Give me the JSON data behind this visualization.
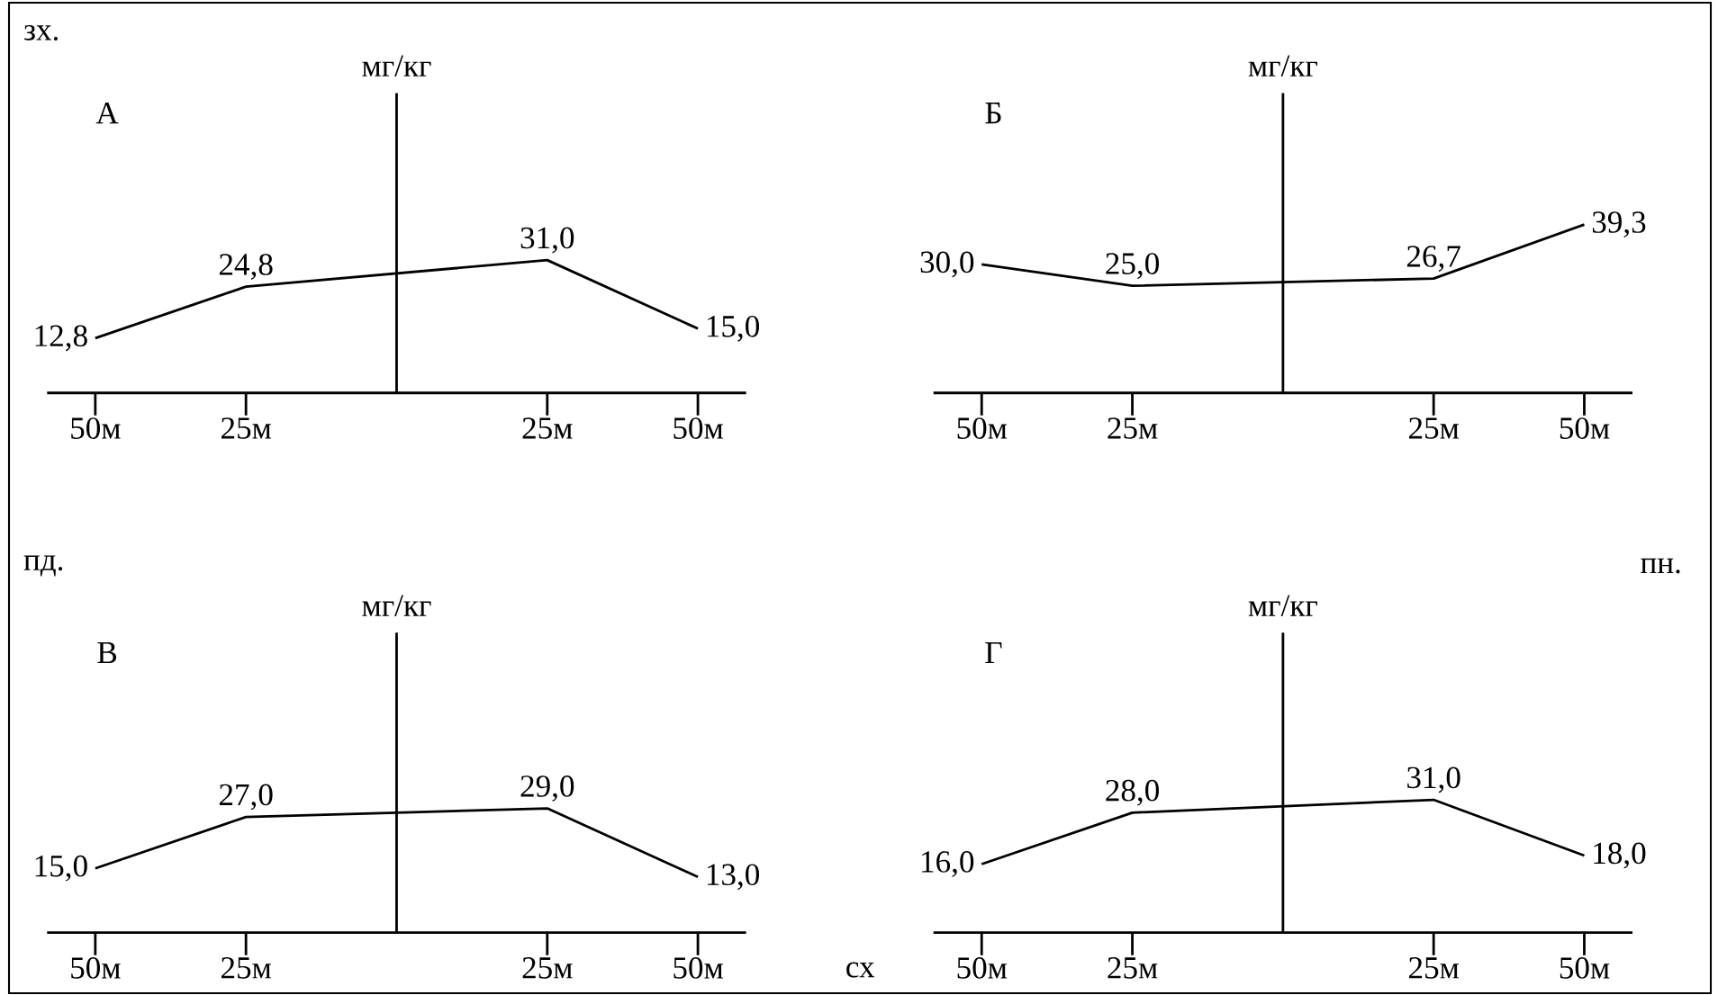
{
  "chart_data": [
    {
      "type": "line",
      "title": "А",
      "ylabel": "мг/кг",
      "x": [
        -50,
        -25,
        25,
        50
      ],
      "values": [
        12.8,
        24.8,
        31.0,
        15.0
      ],
      "value_labels": [
        "12,8",
        "24,8",
        "31,0",
        "15,0"
      ],
      "color": "#000000",
      "xlim": [
        -58,
        58
      ],
      "ylim": [
        0,
        70
      ],
      "xticks": [
        {
          "value": -50,
          "label": "50м"
        },
        {
          "value": -25,
          "label": "25м"
        },
        {
          "value": 25,
          "label": "25м"
        },
        {
          "value": 50,
          "label": "50м"
        }
      ],
      "tick_labels": "x",
      "annotations": [
        "зх.",
        "пд.",
        "пн.",
        "сх"
      ]
    },
    {
      "type": "line",
      "title": "Б",
      "ylabel": "мг/кг",
      "x": [
        -50,
        -25,
        25,
        50
      ],
      "values": [
        30.0,
        25.0,
        26.7,
        39.3
      ],
      "value_labels": [
        "30,0",
        "25,0",
        "26,7",
        "39,3"
      ],
      "color": "#000000",
      "xlim": [
        -58,
        58
      ],
      "ylim": [
        0,
        70
      ],
      "xticks": [
        {
          "value": -50,
          "label": "50м"
        },
        {
          "value": -25,
          "label": "25м"
        },
        {
          "value": 25,
          "label": "25м"
        },
        {
          "value": 50,
          "label": "50м"
        }
      ],
      "tick_labels": "x"
    },
    {
      "type": "line",
      "title": "В",
      "ylabel": "мг/кг",
      "x": [
        -50,
        -25,
        25,
        50
      ],
      "values": [
        15.0,
        27.0,
        29.0,
        13.0
      ],
      "value_labels": [
        "15,0",
        "27,0",
        "29,0",
        "13,0"
      ],
      "color": "#000000",
      "xlim": [
        -58,
        58
      ],
      "ylim": [
        0,
        70
      ],
      "xticks": [
        {
          "value": -50,
          "label": "50м"
        },
        {
          "value": -25,
          "label": "25м"
        },
        {
          "value": 25,
          "label": "25м"
        },
        {
          "value": 50,
          "label": "50м"
        }
      ],
      "tick_labels": "x"
    },
    {
      "type": "line",
      "title": "Г",
      "ylabel": "мг/кг",
      "x": [
        -50,
        -25,
        25,
        50
      ],
      "values": [
        16.0,
        28.0,
        31.0,
        18.0
      ],
      "value_labels": [
        "16,0",
        "28,0",
        "31,0",
        "18,0"
      ],
      "color": "#000000",
      "xlim": [
        -58,
        58
      ],
      "ylim": [
        0,
        70
      ],
      "xticks": [
        {
          "value": -50,
          "label": "50м"
        },
        {
          "value": -25,
          "label": "25м"
        },
        {
          "value": 25,
          "label": "25м"
        },
        {
          "value": 50,
          "label": "50м"
        }
      ],
      "tick_labels": "x"
    }
  ]
}
